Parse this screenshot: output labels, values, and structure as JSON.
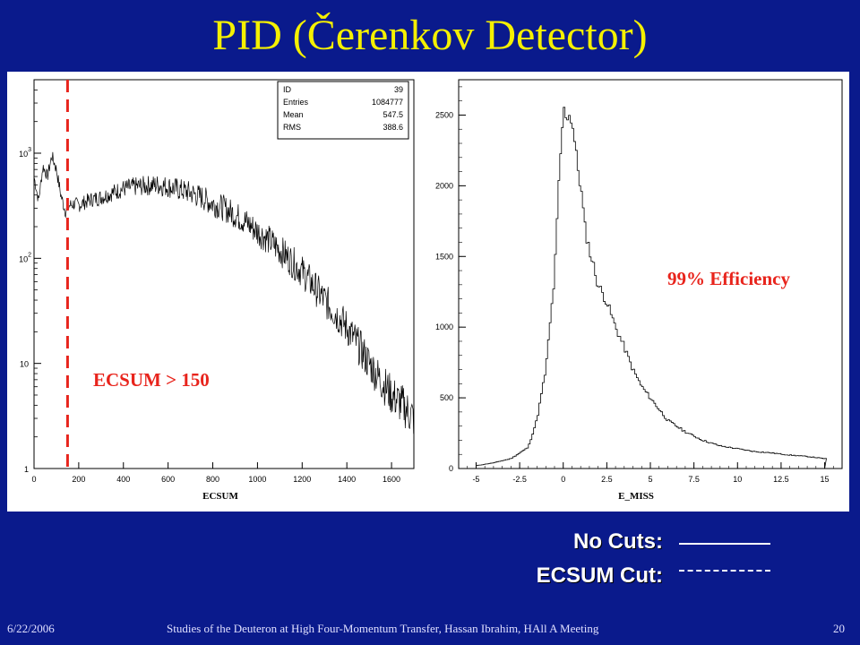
{
  "slide": {
    "title": "PID (Čerenkov Detector)",
    "footer": {
      "date": "6/22/2006",
      "center": "Studies of the Deuteron at High Four-Momentum Transfer, Hassan Ibrahim, HAll A Meeting",
      "page": "20"
    },
    "legend": {
      "no_cuts_label": "No Cuts:",
      "ecsum_cut_label": "ECSUM Cut:"
    }
  },
  "colors": {
    "background": "#0a1a8c",
    "title": "#f5f000",
    "annotation": "#e8241c",
    "legend_text": "#ffffff"
  },
  "chart_data": [
    {
      "type": "line",
      "xlabel": "ECSUM",
      "ylabel": "",
      "xlim": [
        0,
        1700
      ],
      "ylim": [
        1,
        5000
      ],
      "yscale": "log",
      "xticks": [
        "0",
        "200",
        "400",
        "600",
        "800",
        "1000",
        "1200",
        "1400",
        "1600"
      ],
      "ytick_values": [
        1,
        10,
        100,
        1000
      ],
      "ytick_labels": [
        {
          "base": "1",
          "exp": ""
        },
        {
          "base": "10",
          "exp": ""
        },
        {
          "base": "10",
          "exp": "2"
        },
        {
          "base": "10",
          "exp": "3"
        }
      ],
      "stats_box": [
        {
          "key": "ID",
          "value": "39"
        },
        {
          "key": "Entries",
          "value": "1084777"
        },
        {
          "key": "Mean",
          "value": "547.5"
        },
        {
          "key": "RMS",
          "value": "388.6"
        }
      ],
      "cut": {
        "x": 150,
        "label": "ECSUM > 150"
      },
      "series": [
        {
          "x": [
            0,
            20,
            40,
            60,
            80,
            100,
            120,
            140,
            160,
            180,
            200,
            250,
            300,
            350,
            400,
            450,
            500,
            550,
            600,
            650,
            700,
            750,
            800,
            850,
            900,
            950,
            1000,
            1050,
            1100,
            1150,
            1200,
            1250,
            1300,
            1350,
            1400,
            1450,
            1500,
            1550,
            1600,
            1650,
            1700
          ],
          "y": [
            600,
            350,
            750,
            600,
            950,
            700,
            400,
            280,
            320,
            330,
            320,
            360,
            380,
            420,
            460,
            480,
            490,
            500,
            480,
            450,
            420,
            380,
            330,
            300,
            260,
            220,
            180,
            150,
            120,
            95,
            75,
            55,
            40,
            30,
            22,
            15,
            10,
            7,
            5,
            4,
            3
          ]
        }
      ]
    },
    {
      "type": "line",
      "xlabel": "E_MISS",
      "ylabel": "",
      "xlim": [
        -6,
        16
      ],
      "ylim": [
        0,
        2750
      ],
      "xticks": [
        "-5",
        "-2.5",
        "0",
        "2.5",
        "5",
        "7.5",
        "10",
        "12.5",
        "15"
      ],
      "xtick_values": [
        -5,
        -2.5,
        0,
        2.5,
        5,
        7.5,
        10,
        12.5,
        15
      ],
      "yticks": [
        0,
        500,
        1000,
        1500,
        2000,
        2500
      ],
      "annotation": "99% Efficiency",
      "series": [
        {
          "x": [
            -5,
            -4,
            -3,
            -2,
            -1.5,
            -1,
            -0.5,
            -0.25,
            0,
            0.25,
            0.5,
            0.75,
            1,
            1.25,
            1.5,
            1.75,
            2,
            2.5,
            3,
            3.5,
            4,
            4.5,
            5,
            5.5,
            6,
            7,
            8,
            9,
            10,
            11,
            12,
            13,
            14,
            15
          ],
          "y": [
            20,
            40,
            70,
            150,
            350,
            700,
            1350,
            2000,
            2520,
            2510,
            2480,
            2200,
            2000,
            1700,
            1550,
            1430,
            1300,
            1180,
            1000,
            860,
            700,
            580,
            500,
            420,
            340,
            260,
            200,
            160,
            140,
            120,
            110,
            95,
            85,
            70
          ]
        }
      ]
    }
  ]
}
